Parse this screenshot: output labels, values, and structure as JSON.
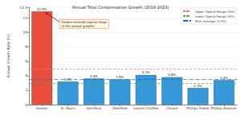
{
  "chart_data": {
    "type": "bar",
    "title": "Annual Total Compensation Growth (2018-2023)",
    "y_label": "Annual Growth Rate (%)",
    "categories": [
      "Gordon",
      "St. Paul's",
      "Hotchkiss",
      "Deerfield",
      "Loomis Chaffee",
      "Choate",
      "Phillips Exeter",
      "Phillips Andover"
    ],
    "values": [
      12.9,
      3.2,
      3.6,
      3.5,
      4.1,
      3.8,
      2.3,
      3.4
    ],
    "value_labels": [
      "12.9%",
      "3.2%",
      "3.6%",
      "3.5%",
      "4.1%",
      "3.8%",
      "2.3%",
      "3.4%"
    ],
    "colors": [
      "#e74c3c",
      "#3498db",
      "#3498db",
      "#3498db",
      "#3498db",
      "#3498db",
      "#3498db",
      "#3498db"
    ],
    "data_labels": true,
    "ylim": [
      0,
      13.5
    ],
    "yticks": [
      0,
      2,
      4,
      6,
      8,
      10,
      12
    ],
    "grid": true,
    "legend": "upper right",
    "reference_lines": [
      {
        "name": "Upper Typical Range (5%)",
        "value": 5,
        "color": "#ff6b6b",
        "line_style": "dashed"
      },
      {
        "name": "Lower Typical Range (3%)",
        "value": 3,
        "color": "#4caf50",
        "line_style": "dashed"
      },
      {
        "name": "Peer Average (3.5%)",
        "value": 3.5,
        "color": "#1f5fbf",
        "line_style": "dashdot"
      }
    ],
    "annotations": [
      {
        "text": "Gordon exceeds typical range\n(3-5% annual growth)",
        "category": "Gordon",
        "value": 12.9
      }
    ]
  }
}
